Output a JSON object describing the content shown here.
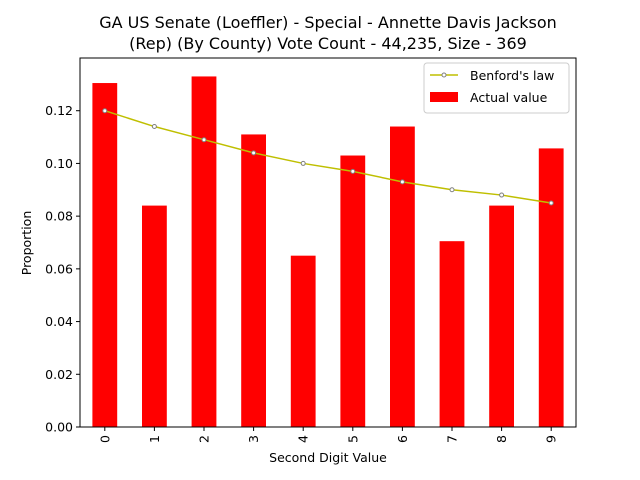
{
  "chart_data": {
    "type": "bar",
    "title_line1": "GA US Senate (Loeffler) - Special - Annette Davis Jackson",
    "title_line2": "(Rep) (By County) Vote Count - 44,235, Size - 369",
    "xlabel": "Second Digit Value",
    "ylabel": "Proportion",
    "categories": [
      "0",
      "1",
      "2",
      "3",
      "4",
      "5",
      "6",
      "7",
      "8",
      "9"
    ],
    "ylim": [
      0,
      0.14
    ],
    "yticks": [
      0.0,
      0.02,
      0.04,
      0.06,
      0.08,
      0.1,
      0.12
    ],
    "ytick_labels": [
      "0.00",
      "0.02",
      "0.04",
      "0.06",
      "0.08",
      "0.10",
      "0.12"
    ],
    "grid": false,
    "legend_position": "top-right",
    "series": [
      {
        "name": "Benford's law",
        "kind": "line",
        "color": "#bfbf00",
        "values": [
          0.12,
          0.114,
          0.109,
          0.104,
          0.1,
          0.097,
          0.093,
          0.09,
          0.088,
          0.085
        ]
      },
      {
        "name": "Actual value",
        "kind": "bar",
        "color": "#ff0000",
        "values": [
          0.1305,
          0.084,
          0.133,
          0.111,
          0.065,
          0.103,
          0.114,
          0.0705,
          0.084,
          0.1057
        ]
      }
    ]
  }
}
